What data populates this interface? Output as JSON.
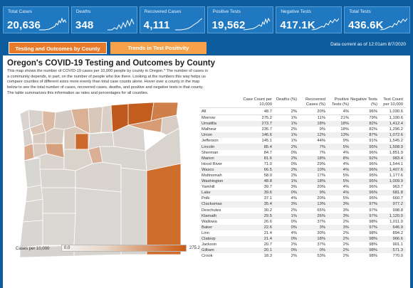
{
  "kpis": [
    {
      "label": "Total Cases",
      "value": "20,636"
    },
    {
      "label": "Deaths",
      "value": "348"
    },
    {
      "label": "Recovered Cases",
      "value": "4,111"
    },
    {
      "label": "Positive Tests",
      "value": "19,562"
    },
    {
      "label": "Negative Tests",
      "value": "417.1K"
    },
    {
      "label": "Total Tests",
      "value": "436.6K"
    }
  ],
  "tabs": {
    "active": "Testing and Outcomes by County",
    "inactive": "Trends in Test Positivity"
  },
  "data_current": "Data current as of 12:01am 8/7/2020",
  "title": "Oregon's COVID-19 Testing and Outcomes by County",
  "description": "This map shows the number of COVID-19 cases per 10,000 people by county in Oregon.* The number of cases in a community depends, in part, on the number of people who live there. Looking at the numbers this way helps us compare counties of different sizes more evenly than total case counts alone. Hover over a county in the map below to see the total number of cases, recovered cases, deaths, and positive and negative tests in that county. The table summarizes this information as rates and percentages for all counties.",
  "legend": {
    "label": "Cases per 10,000",
    "min": "0.0",
    "max": "275.2",
    "low_color": "#f2f2f2",
    "high_color": "#cc5a14"
  },
  "table": {
    "headers": [
      "",
      "Case Count per 10,000",
      "Deaths (%)",
      "Recovered Cases (%)",
      "Positive Tests (%)",
      "Negative Tests (%)",
      "Test Count per 10,000"
    ],
    "all_row": [
      "All",
      "48.7",
      "2%",
      "20%",
      "4%",
      "96%",
      "1,030.6"
    ],
    "rows": [
      [
        "Morrow",
        "275.2",
        "1%",
        "11%",
        "21%",
        "79%",
        "1,190.6"
      ],
      [
        "Umatilla",
        "273.7",
        "1%",
        "18%",
        "18%",
        "82%",
        "1,412.4"
      ],
      [
        "Malheur",
        "235.7",
        "2%",
        "9%",
        "18%",
        "82%",
        "1,296.2"
      ],
      [
        "Union",
        "146.6",
        "1%",
        "12%",
        "13%",
        "87%",
        "1,072.6"
      ],
      [
        "Jefferson",
        "145.1",
        "1%",
        "44%",
        "9%",
        "91%",
        "1,545.2"
      ],
      [
        "Lincoln",
        "85.4",
        "2%",
        "7%",
        "5%",
        "95%",
        "1,508.9"
      ],
      [
        "Sherman",
        "84.7",
        "0%",
        "7%",
        "4%",
        "96%",
        "1,851.9"
      ],
      [
        "Marion",
        "81.6",
        "2%",
        "18%",
        "8%",
        "92%",
        "983.4"
      ],
      [
        "Hood River",
        "71.0",
        "0%",
        "29%",
        "4%",
        "96%",
        "1,544.1"
      ],
      [
        "Wasco",
        "66.5",
        "2%",
        "10%",
        "4%",
        "96%",
        "1,407.6"
      ],
      [
        "Multnomah",
        "58.0",
        "2%",
        "17%",
        "5%",
        "95%",
        "1,177.6"
      ],
      [
        "Washington",
        "48.8",
        "1%",
        "18%",
        "5%",
        "95%",
        "1,009.9"
      ],
      [
        "Yamhill",
        "39.7",
        "3%",
        "20%",
        "4%",
        "96%",
        "963.7"
      ],
      [
        "Lake",
        "39.6",
        "0%",
        "9%",
        "4%",
        "96%",
        "681.8"
      ],
      [
        "Polk",
        "37.1",
        "4%",
        "20%",
        "5%",
        "95%",
        "660.7"
      ],
      [
        "Clackamas",
        "35.4",
        "3%",
        "13%",
        "3%",
        "97%",
        "977.2"
      ],
      [
        "Deschutes",
        "30.2",
        "2%",
        "65%",
        "3%",
        "97%",
        "998.8"
      ],
      [
        "Klamath",
        "29.5",
        "1%",
        "26%",
        "3%",
        "97%",
        "1,120.0"
      ],
      [
        "Wallowa",
        "26.6",
        "0%",
        "37%",
        "2%",
        "98%",
        "1,011.0"
      ],
      [
        "Baker",
        "22.6",
        "0%",
        "3%",
        "3%",
        "97%",
        "646.9"
      ],
      [
        "Linn",
        "21.4",
        "4%",
        "30%",
        "2%",
        "98%",
        "894.2"
      ],
      [
        "Clatsop",
        "21.4",
        "0%",
        "18%",
        "2%",
        "98%",
        "966.6"
      ],
      [
        "Jackson",
        "20.7",
        "2%",
        "37%",
        "2%",
        "98%",
        "901.1"
      ],
      [
        "Gilliam",
        "20.1",
        "0%",
        "0%",
        "2%",
        "98%",
        "571.3"
      ],
      [
        "Crook",
        "18.3",
        "2%",
        "53%",
        "2%",
        "98%",
        "770.0"
      ]
    ]
  }
}
